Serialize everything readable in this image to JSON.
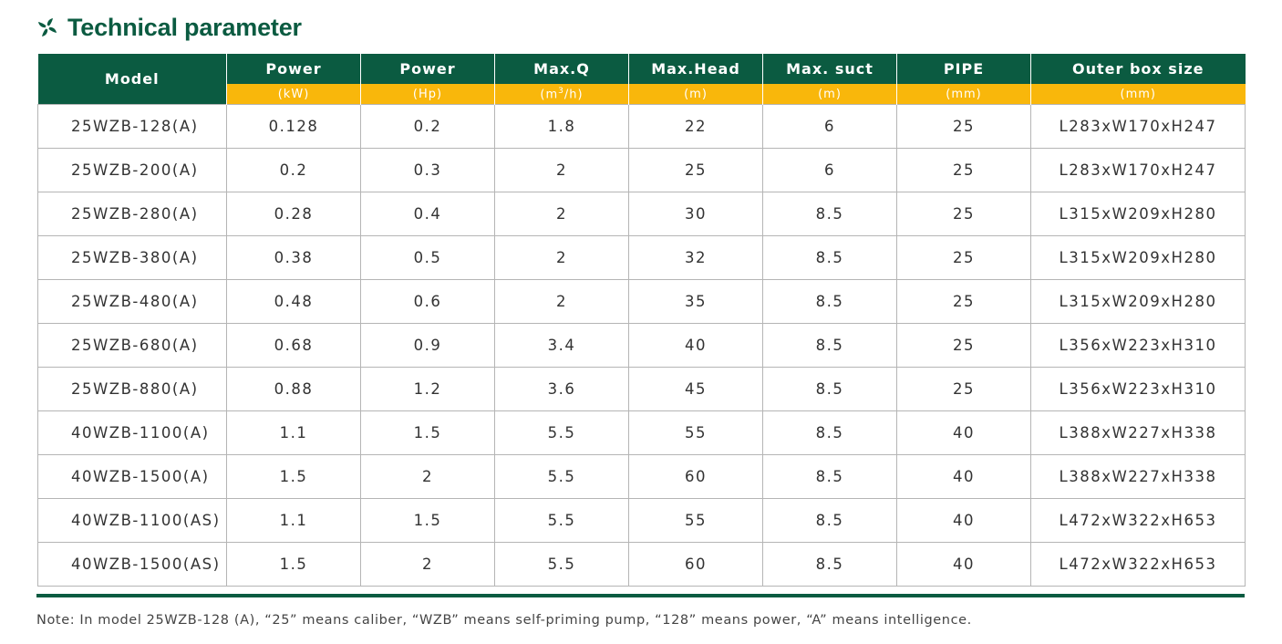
{
  "title": "Technical parameter",
  "icon": "pinwheel-icon",
  "colors": {
    "header_green": "#0b5b41",
    "unit_yellow": "#f9b70b"
  },
  "headers": [
    {
      "label": "Model",
      "unit": ""
    },
    {
      "label": "Power",
      "unit": "(kW)"
    },
    {
      "label": "Power",
      "unit": "(Hp)"
    },
    {
      "label": "Max.Q",
      "unit_pre": "(m",
      "unit_sup": "3",
      "unit_post": "/h)"
    },
    {
      "label": "Max.Head",
      "unit": "(m)"
    },
    {
      "label": "Max. suct",
      "unit": "(m)"
    },
    {
      "label": "PIPE",
      "unit": "(mm)"
    },
    {
      "label": "Outer box size",
      "unit": "(mm)"
    }
  ],
  "rows": [
    [
      "25WZB-128(A)",
      "0.128",
      "0.2",
      "1.8",
      "22",
      "6",
      "25",
      "L283xW170xH247"
    ],
    [
      "25WZB-200(A)",
      "0.2",
      "0.3",
      "2",
      "25",
      "6",
      "25",
      "L283xW170xH247"
    ],
    [
      "25WZB-280(A)",
      "0.28",
      "0.4",
      "2",
      "30",
      "8.5",
      "25",
      "L315xW209xH280"
    ],
    [
      "25WZB-380(A)",
      "0.38",
      "0.5",
      "2",
      "32",
      "8.5",
      "25",
      "L315xW209xH280"
    ],
    [
      "25WZB-480(A)",
      "0.48",
      "0.6",
      "2",
      "35",
      "8.5",
      "25",
      "L315xW209xH280"
    ],
    [
      "25WZB-680(A)",
      "0.68",
      "0.9",
      "3.4",
      "40",
      "8.5",
      "25",
      "L356xW223xH310"
    ],
    [
      "25WZB-880(A)",
      "0.88",
      "1.2",
      "3.6",
      "45",
      "8.5",
      "25",
      "L356xW223xH310"
    ],
    [
      "40WZB-1100(A)",
      "1.1",
      "1.5",
      "5.5",
      "55",
      "8.5",
      "40",
      "L388xW227xH338"
    ],
    [
      "40WZB-1500(A)",
      "1.5",
      "2",
      "5.5",
      "60",
      "8.5",
      "40",
      "L388xW227xH338"
    ],
    [
      "40WZB-1100(AS)",
      "1.1",
      "1.5",
      "5.5",
      "55",
      "8.5",
      "40",
      "L472xW322xH653"
    ],
    [
      "40WZB-1500(AS)",
      "1.5",
      "2",
      "5.5",
      "60",
      "8.5",
      "40",
      "L472xW322xH653"
    ]
  ],
  "note": "Note: In model 25WZB-128 (A), “25” means caliber, “WZB” means self-priming pump, “128” means power, “A” means intelligence."
}
